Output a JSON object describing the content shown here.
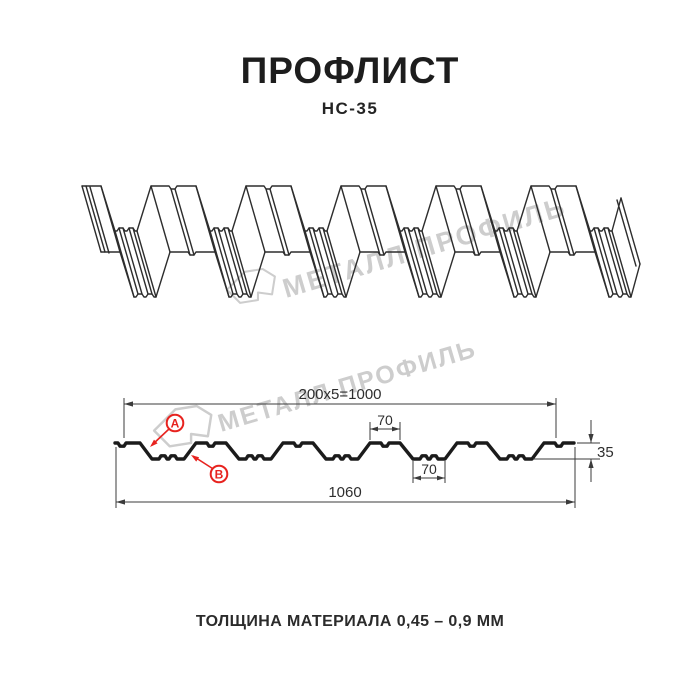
{
  "page": {
    "title": "ПРОФЛИСТ",
    "subtitle": "НС-35",
    "footer": "ТОЛЩИНА МАТЕРИАЛА 0,45 – 0,9 ММ"
  },
  "watermark": {
    "text": "МЕТАЛЛ ПРОФИЛЬ"
  },
  "diagram": {
    "dim_width_top": "200x5=1000",
    "dim_flange_top": "70",
    "dim_flange_bottom": "70",
    "dim_total_width": "1060",
    "dim_height": "35",
    "label_a": "A",
    "label_b": "B"
  },
  "colors": {
    "accent_red": "#e7231f",
    "line_dark": "#2d2d2d",
    "watermark_gray": "#cdcdcd"
  }
}
